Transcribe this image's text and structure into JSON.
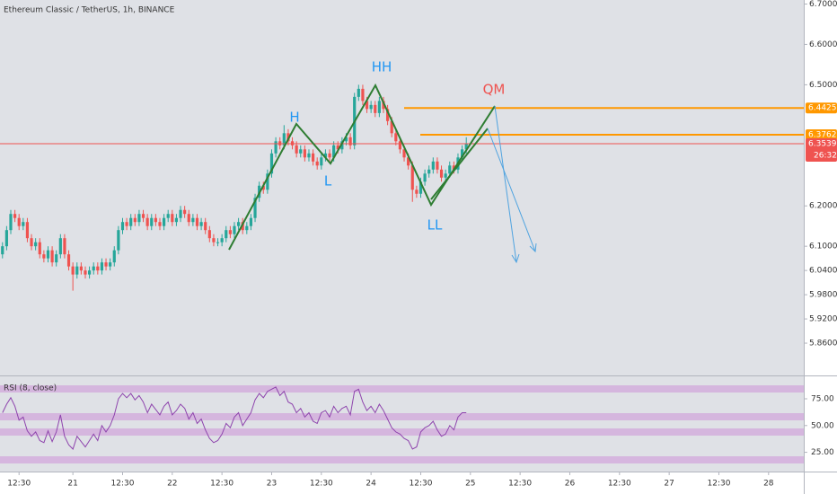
{
  "chart_data": [
    {
      "type": "candlestick",
      "title": "Ethereum Classic / TetherUS, 1h, BINANCE",
      "open": [
        6.08,
        6.1,
        6.14,
        6.18,
        6.17,
        6.15,
        6.16,
        6.12,
        6.1,
        6.11,
        6.08,
        6.07,
        6.09,
        6.06,
        6.08,
        6.12,
        6.08,
        6.05,
        6.03,
        6.05,
        6.04,
        6.03,
        6.04,
        6.05,
        6.04,
        6.06,
        6.05,
        6.06,
        6.09,
        6.14,
        6.16,
        6.15,
        6.17,
        6.16,
        6.18,
        6.17,
        6.15,
        6.17,
        6.16,
        6.15,
        6.17,
        6.18,
        6.16,
        6.17,
        6.19,
        6.18,
        6.16,
        6.17,
        6.15,
        6.16,
        6.14,
        6.12,
        6.11,
        6.11,
        6.12,
        6.14,
        6.13,
        6.15,
        6.16,
        6.14,
        6.15,
        6.17,
        6.22,
        6.25,
        6.24,
        6.28,
        6.33,
        6.36,
        6.35,
        6.38,
        6.36,
        6.35,
        6.33,
        6.34,
        6.32,
        6.33,
        6.31,
        6.3,
        6.32,
        6.33,
        6.32,
        6.35,
        6.34,
        6.36,
        6.37,
        6.35,
        6.47,
        6.49,
        6.46,
        6.44,
        6.45,
        6.43,
        6.46,
        6.44,
        6.41,
        6.38,
        6.36,
        6.34,
        6.32,
        6.3,
        6.24,
        6.23,
        6.26,
        6.28,
        6.29,
        6.31,
        6.29,
        6.27,
        6.28,
        6.3,
        6.29,
        6.32,
        6.34
      ],
      "high": [
        6.11,
        6.15,
        6.19,
        6.19,
        6.18,
        6.17,
        6.17,
        6.13,
        6.12,
        6.12,
        6.09,
        6.1,
        6.1,
        6.09,
        6.13,
        6.13,
        6.09,
        6.06,
        6.06,
        6.06,
        6.05,
        6.05,
        6.06,
        6.06,
        6.07,
        6.07,
        6.07,
        6.1,
        6.15,
        6.17,
        6.17,
        6.18,
        6.18,
        6.19,
        6.19,
        6.18,
        6.18,
        6.18,
        6.17,
        6.18,
        6.19,
        6.19,
        6.18,
        6.2,
        6.2,
        6.19,
        6.18,
        6.18,
        6.17,
        6.17,
        6.15,
        6.13,
        6.12,
        6.13,
        6.15,
        6.15,
        6.16,
        6.17,
        6.17,
        6.16,
        6.18,
        6.23,
        6.26,
        6.26,
        6.29,
        6.34,
        6.37,
        6.37,
        6.4,
        6.39,
        6.37,
        6.36,
        6.35,
        6.35,
        6.34,
        6.34,
        6.32,
        6.33,
        6.34,
        6.34,
        6.36,
        6.36,
        6.37,
        6.38,
        6.38,
        6.48,
        6.5,
        6.5,
        6.47,
        6.46,
        6.46,
        6.47,
        6.47,
        6.45,
        6.42,
        6.39,
        6.37,
        6.35,
        6.33,
        6.31,
        6.25,
        6.27,
        6.29,
        6.3,
        6.32,
        6.32,
        6.3,
        6.29,
        6.31,
        6.31,
        6.33,
        6.35,
        6.37
      ],
      "low": [
        6.07,
        6.09,
        6.13,
        6.16,
        6.14,
        6.14,
        6.11,
        6.09,
        6.09,
        6.07,
        6.06,
        6.06,
        6.05,
        6.05,
        6.07,
        6.07,
        6.04,
        5.99,
        6.02,
        6.03,
        6.02,
        6.02,
        6.03,
        6.03,
        6.03,
        6.04,
        6.04,
        6.05,
        6.08,
        6.13,
        6.14,
        6.14,
        6.15,
        6.15,
        6.16,
        6.14,
        6.14,
        6.15,
        6.14,
        6.14,
        6.16,
        6.15,
        6.15,
        6.16,
        6.17,
        6.15,
        6.15,
        6.14,
        6.14,
        6.13,
        6.11,
        6.1,
        6.1,
        6.1,
        6.11,
        6.12,
        6.12,
        6.14,
        6.13,
        6.13,
        6.14,
        6.16,
        6.21,
        6.23,
        6.23,
        6.27,
        6.32,
        6.34,
        6.34,
        6.35,
        6.34,
        6.32,
        6.32,
        6.31,
        6.31,
        6.3,
        6.29,
        6.29,
        6.31,
        6.31,
        6.31,
        6.33,
        6.33,
        6.35,
        6.34,
        6.34,
        6.46,
        6.45,
        6.43,
        6.43,
        6.42,
        6.42,
        6.43,
        6.4,
        6.37,
        6.35,
        6.33,
        6.31,
        6.29,
        6.21,
        6.22,
        6.22,
        6.25,
        6.27,
        6.28,
        6.28,
        6.26,
        6.26,
        6.27,
        6.28,
        6.28,
        6.31,
        6.33
      ],
      "close": [
        6.1,
        6.14,
        6.18,
        6.17,
        6.15,
        6.16,
        6.12,
        6.1,
        6.11,
        6.08,
        6.07,
        6.09,
        6.06,
        6.08,
        6.12,
        6.08,
        6.05,
        6.03,
        6.05,
        6.04,
        6.03,
        6.04,
        6.05,
        6.04,
        6.06,
        6.05,
        6.06,
        6.09,
        6.14,
        6.16,
        6.15,
        6.17,
        6.16,
        6.18,
        6.17,
        6.15,
        6.17,
        6.16,
        6.15,
        6.17,
        6.18,
        6.16,
        6.17,
        6.19,
        6.18,
        6.16,
        6.17,
        6.15,
        6.16,
        6.14,
        6.12,
        6.11,
        6.11,
        6.12,
        6.14,
        6.13,
        6.15,
        6.16,
        6.14,
        6.15,
        6.17,
        6.22,
        6.25,
        6.24,
        6.28,
        6.33,
        6.36,
        6.35,
        6.38,
        6.36,
        6.35,
        6.33,
        6.34,
        6.32,
        6.33,
        6.31,
        6.3,
        6.32,
        6.33,
        6.32,
        6.35,
        6.34,
        6.36,
        6.37,
        6.35,
        6.47,
        6.49,
        6.46,
        6.44,
        6.45,
        6.43,
        6.46,
        6.44,
        6.41,
        6.38,
        6.36,
        6.34,
        6.32,
        6.3,
        6.24,
        6.23,
        6.26,
        6.28,
        6.29,
        6.31,
        6.29,
        6.27,
        6.28,
        6.3,
        6.29,
        6.32,
        6.34,
        6.3539
      ],
      "up_color": "#26a69a",
      "down_color": "#ef5350",
      "xlim": [
        -0.6,
        193.5
      ],
      "xticks": [
        {
          "value": 4,
          "label": "12:30"
        },
        {
          "value": 17,
          "label": "21"
        },
        {
          "value": 29,
          "label": "12:30"
        },
        {
          "value": 41,
          "label": "22"
        },
        {
          "value": 53,
          "label": "12:30"
        },
        {
          "value": 65,
          "label": "23"
        },
        {
          "value": 77,
          "label": "12:30"
        },
        {
          "value": 89,
          "label": "24"
        },
        {
          "value": 101,
          "label": "12:30"
        },
        {
          "value": 113,
          "label": "25"
        },
        {
          "value": 125,
          "label": "12:30"
        },
        {
          "value": 137,
          "label": "26"
        },
        {
          "value": 149,
          "label": "12:30"
        },
        {
          "value": 161,
          "label": "27"
        },
        {
          "value": 173,
          "label": "12:30"
        },
        {
          "value": 185,
          "label": "28"
        }
      ],
      "ylim": [
        5.78,
        6.71
      ],
      "yticks": [
        {
          "value": 6.7,
          "label": "6.7000"
        },
        {
          "value": 6.6,
          "label": "6.6000"
        },
        {
          "value": 6.5,
          "label": "6.5000"
        },
        {
          "value": 6.2,
          "label": "6.2000"
        },
        {
          "value": 6.1,
          "label": "6.1000"
        },
        {
          "value": 6.04,
          "label": "6.0400"
        },
        {
          "value": 5.98,
          "label": "5.9800"
        },
        {
          "value": 5.92,
          "label": "5.9200"
        },
        {
          "value": 5.86,
          "label": "5.8600"
        }
      ],
      "levels": [
        {
          "value": 6.4425,
          "color": "#ff9800"
        },
        {
          "value": 6.3762,
          "color": "#ff9800"
        },
        {
          "value": 6.3539,
          "color": "#ef5350",
          "countdown": "26:32"
        }
      ],
      "annotations": [
        "H",
        "HH",
        "L",
        "LL",
        "QM"
      ]
    },
    {
      "type": "line",
      "title": "RSI (8, close)",
      "color": "#8e44ad",
      "values": [
        62,
        70,
        76,
        68,
        55,
        58,
        45,
        40,
        44,
        36,
        34,
        45,
        35,
        44,
        60,
        40,
        32,
        28,
        40,
        35,
        30,
        36,
        42,
        36,
        50,
        44,
        50,
        60,
        75,
        80,
        76,
        80,
        74,
        78,
        72,
        62,
        70,
        65,
        60,
        68,
        72,
        60,
        64,
        70,
        66,
        56,
        62,
        52,
        56,
        46,
        38,
        34,
        36,
        42,
        52,
        48,
        58,
        62,
        50,
        56,
        62,
        74,
        80,
        76,
        82,
        84,
        86,
        78,
        82,
        72,
        70,
        62,
        66,
        58,
        62,
        54,
        52,
        62,
        64,
        58,
        68,
        62,
        66,
        68,
        60,
        82,
        84,
        72,
        64,
        68,
        62,
        70,
        64,
        56,
        48,
        44,
        42,
        38,
        36,
        28,
        30,
        44,
        48,
        50,
        54,
        46,
        40,
        42,
        50,
        46,
        58,
        62,
        62
      ],
      "ylim": [
        7,
        96
      ],
      "yticks": [
        {
          "value": 75,
          "label": "75.00"
        },
        {
          "value": 50,
          "label": "50.00"
        },
        {
          "value": 25,
          "label": "25.00"
        }
      ]
    }
  ]
}
